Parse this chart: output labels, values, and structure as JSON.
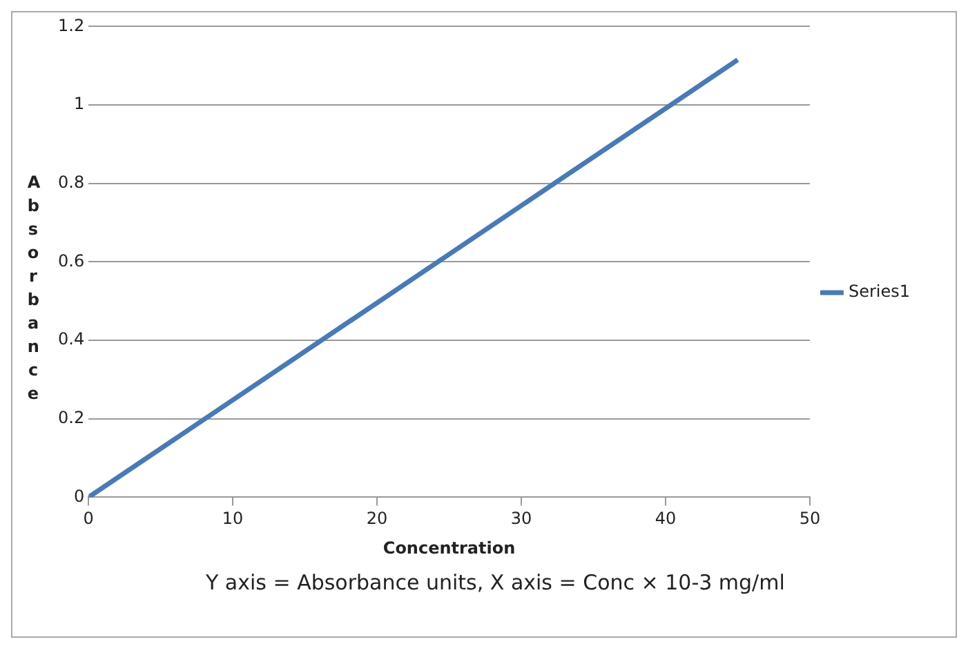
{
  "chart_data": {
    "type": "line",
    "xlabel": "Concentration",
    "ylabel": "Absorbance",
    "x": [
      0,
      45
    ],
    "series": [
      {
        "name": "Series1",
        "color": "#4a7ab5",
        "values": [
          0,
          1.115
        ]
      }
    ],
    "xlim": [
      0,
      50
    ],
    "xticks": [
      0,
      10,
      20,
      30,
      40,
      50
    ],
    "ylim": [
      0,
      1.2
    ],
    "yticks": [
      0,
      0.2,
      0.4,
      0.6,
      0.8,
      1,
      1.2
    ],
    "grid": "y",
    "legend": "right",
    "marker": "none",
    "line_style": "solid",
    "annotations": [
      "Y axis = Absorbance units, X axis = Conc × 10-3 mg/ml"
    ]
  }
}
